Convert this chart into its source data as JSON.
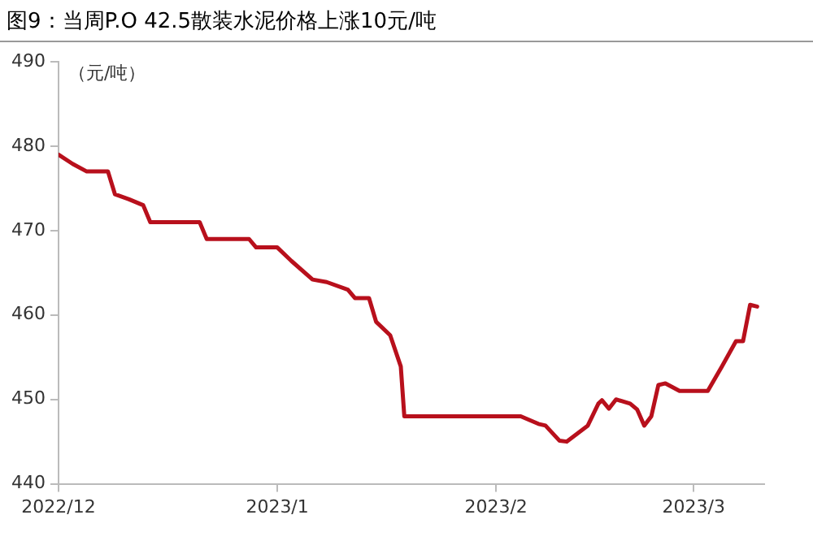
{
  "chart_data": {
    "type": "line",
    "title": "图9：当周P.O 42.5散装水泥价格上涨10元/吨",
    "ylabel": "（元/吨）",
    "x": [
      "2022-12-01",
      "2022-12-03",
      "2022-12-05",
      "2022-12-08",
      "2022-12-09",
      "2022-12-11",
      "2022-12-13",
      "2022-12-14",
      "2022-12-21",
      "2022-12-22",
      "2022-12-28",
      "2022-12-29",
      "2023-01-01",
      "2023-01-03",
      "2023-01-06",
      "2023-01-08",
      "2023-01-11",
      "2023-01-12",
      "2023-01-14",
      "2023-01-15",
      "2023-01-17",
      "2023-01-18T12:00",
      "2023-01-19",
      "2023-02-04T12:00",
      "2023-02-07",
      "2023-02-08",
      "2023-02-10",
      "2023-02-11",
      "2023-02-14",
      "2023-02-15T12:00",
      "2023-02-16",
      "2023-02-17",
      "2023-02-18",
      "2023-02-20",
      "2023-02-21",
      "2023-02-22",
      "2023-02-23",
      "2023-02-24",
      "2023-02-25",
      "2023-02-27",
      "2023-03-03",
      "2023-03-05",
      "2023-03-07",
      "2023-03-08",
      "2023-03-09",
      "2023-03-10"
    ],
    "series": [
      {
        "color": "#b8101c",
        "values": [
          479,
          477.9,
          477,
          477,
          474.3,
          473.7,
          473,
          471,
          471,
          469,
          469,
          468,
          468,
          466.4,
          464.2,
          463.9,
          463,
          462,
          462,
          459.2,
          457.6,
          453.9,
          448,
          448,
          447.1,
          446.9,
          445.1,
          445,
          446.9,
          449.5,
          449.9,
          448.9,
          450,
          449.5,
          448.8,
          446.9,
          448,
          451.7,
          451.9,
          451,
          451,
          453.9,
          456.9,
          456.9,
          461.2,
          461
        ]
      }
    ],
    "xlim": [
      "2022-12-01",
      "2023-03-11"
    ],
    "xticks": [
      {
        "value": "2022-12-01",
        "label": "2022/12"
      },
      {
        "value": "2023-01-01",
        "label": "2023/1"
      },
      {
        "value": "2023-02-01",
        "label": "2023/2"
      },
      {
        "value": "2023-03-01",
        "label": "2023/3"
      }
    ],
    "ylim": [
      440,
      490
    ],
    "yticks": [
      440,
      450,
      460,
      470,
      480,
      490
    ],
    "grid": false,
    "legend": false,
    "marker": "none",
    "line_style": "solid"
  }
}
